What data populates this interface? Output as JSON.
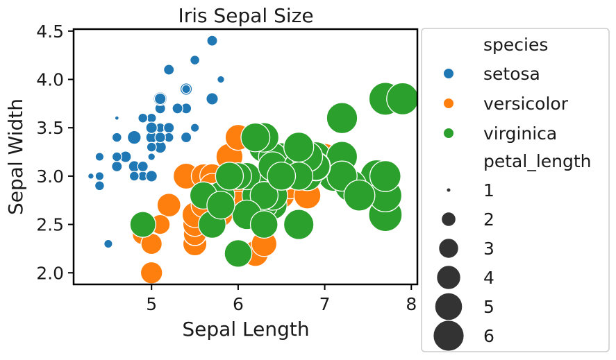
{
  "chart_data": {
    "type": "scatter",
    "title": "Iris Sepal Size",
    "xlabel": "Sepal Length",
    "ylabel": "Sepal Width",
    "xlim": [
      4.1,
      8.07
    ],
    "ylim": [
      1.88,
      4.52
    ],
    "xticks": [
      "5",
      "6",
      "7",
      "8"
    ],
    "yticks": [
      "2.0",
      "2.5",
      "3.0",
      "3.5",
      "4.0",
      "4.5"
    ],
    "grid": false,
    "legend": {
      "placement": "outside-right",
      "hue_title": "species",
      "size_title": "petal_length",
      "size_entries": [
        "1",
        "2",
        "3",
        "4",
        "5",
        "6"
      ]
    },
    "size_range": [
      1.0,
      6.9
    ],
    "series": [
      {
        "name": "setosa",
        "color": "#1f77b4",
        "points": [
          [
            5.1,
            3.5,
            1.4
          ],
          [
            4.9,
            3.0,
            1.4
          ],
          [
            4.7,
            3.2,
            1.3
          ],
          [
            4.6,
            3.1,
            1.5
          ],
          [
            5.0,
            3.6,
            1.4
          ],
          [
            5.4,
            3.9,
            1.7
          ],
          [
            4.6,
            3.4,
            1.4
          ],
          [
            5.0,
            3.4,
            1.5
          ],
          [
            4.4,
            2.9,
            1.4
          ],
          [
            4.9,
            3.1,
            1.5
          ],
          [
            5.4,
            3.7,
            1.5
          ],
          [
            4.8,
            3.4,
            1.6
          ],
          [
            4.8,
            3.0,
            1.4
          ],
          [
            4.3,
            3.0,
            1.1
          ],
          [
            5.8,
            4.0,
            1.2
          ],
          [
            5.7,
            4.4,
            1.5
          ],
          [
            5.4,
            3.9,
            1.3
          ],
          [
            5.1,
            3.5,
            1.4
          ],
          [
            5.7,
            3.8,
            1.7
          ],
          [
            5.1,
            3.8,
            1.5
          ],
          [
            5.4,
            3.4,
            1.7
          ],
          [
            5.1,
            3.7,
            1.5
          ],
          [
            4.6,
            3.6,
            1.0
          ],
          [
            5.1,
            3.3,
            1.7
          ],
          [
            4.8,
            3.4,
            1.9
          ],
          [
            5.0,
            3.0,
            1.6
          ],
          [
            5.0,
            3.4,
            1.6
          ],
          [
            5.2,
            3.5,
            1.5
          ],
          [
            5.2,
            3.4,
            1.4
          ],
          [
            4.7,
            3.2,
            1.6
          ],
          [
            4.8,
            3.1,
            1.6
          ],
          [
            5.4,
            3.4,
            1.5
          ],
          [
            5.2,
            4.1,
            1.5
          ],
          [
            5.5,
            4.2,
            1.4
          ],
          [
            4.9,
            3.1,
            1.5
          ],
          [
            5.0,
            3.2,
            1.2
          ],
          [
            5.5,
            3.5,
            1.3
          ],
          [
            4.9,
            3.6,
            1.4
          ],
          [
            4.4,
            3.0,
            1.3
          ],
          [
            5.1,
            3.4,
            1.5
          ],
          [
            5.0,
            3.5,
            1.3
          ],
          [
            4.5,
            2.3,
            1.3
          ],
          [
            4.4,
            3.2,
            1.3
          ],
          [
            5.0,
            3.5,
            1.6
          ],
          [
            5.1,
            3.8,
            1.9
          ],
          [
            4.8,
            3.0,
            1.4
          ],
          [
            5.1,
            3.8,
            1.6
          ],
          [
            4.6,
            3.2,
            1.4
          ],
          [
            5.3,
            3.7,
            1.5
          ],
          [
            5.0,
            3.3,
            1.4
          ]
        ]
      },
      {
        "name": "versicolor",
        "color": "#ff7f0e",
        "points": [
          [
            7.0,
            3.2,
            4.7
          ],
          [
            6.4,
            3.2,
            4.5
          ],
          [
            6.9,
            3.1,
            4.9
          ],
          [
            5.5,
            2.3,
            4.0
          ],
          [
            6.5,
            2.8,
            4.6
          ],
          [
            5.7,
            2.8,
            4.5
          ],
          [
            6.3,
            3.3,
            4.7
          ],
          [
            4.9,
            2.4,
            3.3
          ],
          [
            6.6,
            2.9,
            4.6
          ],
          [
            5.2,
            2.7,
            3.9
          ],
          [
            5.0,
            2.0,
            3.5
          ],
          [
            5.9,
            3.0,
            4.2
          ],
          [
            6.0,
            2.2,
            4.0
          ],
          [
            6.1,
            2.9,
            4.7
          ],
          [
            5.6,
            2.9,
            3.6
          ],
          [
            6.7,
            3.1,
            4.4
          ],
          [
            5.6,
            3.0,
            4.5
          ],
          [
            5.8,
            2.7,
            4.1
          ],
          [
            6.2,
            2.2,
            4.5
          ],
          [
            5.6,
            2.5,
            3.9
          ],
          [
            5.9,
            3.2,
            4.8
          ],
          [
            6.1,
            2.8,
            4.0
          ],
          [
            6.3,
            2.5,
            4.9
          ],
          [
            6.1,
            2.8,
            4.7
          ],
          [
            6.4,
            2.9,
            4.3
          ],
          [
            6.6,
            3.0,
            4.4
          ],
          [
            6.8,
            2.8,
            4.8
          ],
          [
            6.7,
            3.0,
            5.0
          ],
          [
            6.0,
            2.9,
            4.5
          ],
          [
            5.7,
            2.6,
            3.5
          ],
          [
            5.5,
            2.4,
            3.8
          ],
          [
            5.5,
            2.4,
            3.7
          ],
          [
            5.8,
            2.7,
            3.9
          ],
          [
            6.0,
            2.7,
            5.1
          ],
          [
            5.4,
            3.0,
            4.5
          ],
          [
            6.0,
            3.4,
            4.5
          ],
          [
            6.7,
            3.1,
            4.7
          ],
          [
            6.3,
            2.3,
            4.4
          ],
          [
            5.6,
            3.0,
            4.1
          ],
          [
            5.5,
            2.5,
            4.0
          ],
          [
            5.5,
            2.6,
            4.4
          ],
          [
            6.1,
            3.0,
            4.6
          ],
          [
            5.8,
            2.6,
            4.0
          ],
          [
            5.0,
            2.3,
            3.3
          ],
          [
            5.6,
            2.7,
            4.2
          ],
          [
            5.7,
            3.0,
            4.2
          ],
          [
            5.7,
            2.9,
            4.2
          ],
          [
            6.2,
            2.9,
            4.3
          ],
          [
            5.1,
            2.5,
            3.0
          ],
          [
            5.7,
            2.8,
            4.1
          ]
        ]
      },
      {
        "name": "virginica",
        "color": "#2ca02c",
        "points": [
          [
            6.3,
            3.3,
            6.0
          ],
          [
            5.8,
            2.7,
            5.1
          ],
          [
            7.1,
            3.0,
            5.9
          ],
          [
            6.3,
            2.9,
            5.6
          ],
          [
            6.5,
            3.0,
            5.8
          ],
          [
            7.6,
            3.0,
            6.6
          ],
          [
            4.9,
            2.5,
            4.5
          ],
          [
            7.3,
            2.9,
            6.3
          ],
          [
            6.7,
            2.5,
            5.8
          ],
          [
            7.2,
            3.6,
            6.1
          ],
          [
            6.5,
            3.2,
            5.1
          ],
          [
            6.4,
            2.7,
            5.3
          ],
          [
            6.8,
            3.0,
            5.5
          ],
          [
            5.7,
            2.5,
            5.0
          ],
          [
            5.8,
            2.8,
            5.1
          ],
          [
            6.4,
            3.2,
            5.3
          ],
          [
            6.5,
            3.0,
            5.5
          ],
          [
            7.7,
            3.8,
            6.7
          ],
          [
            7.7,
            2.6,
            6.9
          ],
          [
            6.0,
            2.2,
            5.0
          ],
          [
            6.9,
            3.2,
            5.7
          ],
          [
            5.6,
            2.8,
            4.9
          ],
          [
            7.7,
            2.8,
            6.7
          ],
          [
            6.3,
            2.7,
            4.9
          ],
          [
            6.7,
            3.3,
            5.7
          ],
          [
            7.2,
            3.2,
            6.0
          ],
          [
            6.2,
            2.8,
            4.8
          ],
          [
            6.1,
            3.0,
            4.9
          ],
          [
            6.4,
            2.8,
            5.6
          ],
          [
            7.2,
            3.0,
            5.8
          ],
          [
            7.4,
            2.8,
            6.1
          ],
          [
            7.9,
            3.8,
            6.4
          ],
          [
            6.4,
            2.8,
            5.6
          ],
          [
            6.3,
            2.8,
            5.1
          ],
          [
            6.1,
            2.6,
            5.6
          ],
          [
            7.7,
            3.0,
            6.1
          ],
          [
            6.3,
            3.4,
            5.6
          ],
          [
            6.4,
            3.1,
            5.5
          ],
          [
            6.0,
            3.0,
            4.8
          ],
          [
            6.9,
            3.1,
            5.4
          ],
          [
            6.7,
            3.1,
            5.6
          ],
          [
            6.9,
            3.1,
            5.1
          ],
          [
            5.8,
            2.7,
            5.1
          ],
          [
            6.8,
            3.2,
            5.9
          ],
          [
            6.7,
            3.3,
            5.7
          ],
          [
            6.7,
            3.0,
            5.2
          ],
          [
            6.3,
            2.5,
            5.0
          ],
          [
            6.5,
            3.0,
            5.2
          ],
          [
            6.2,
            3.4,
            5.4
          ],
          [
            5.9,
            3.0,
            5.1
          ]
        ]
      }
    ]
  }
}
